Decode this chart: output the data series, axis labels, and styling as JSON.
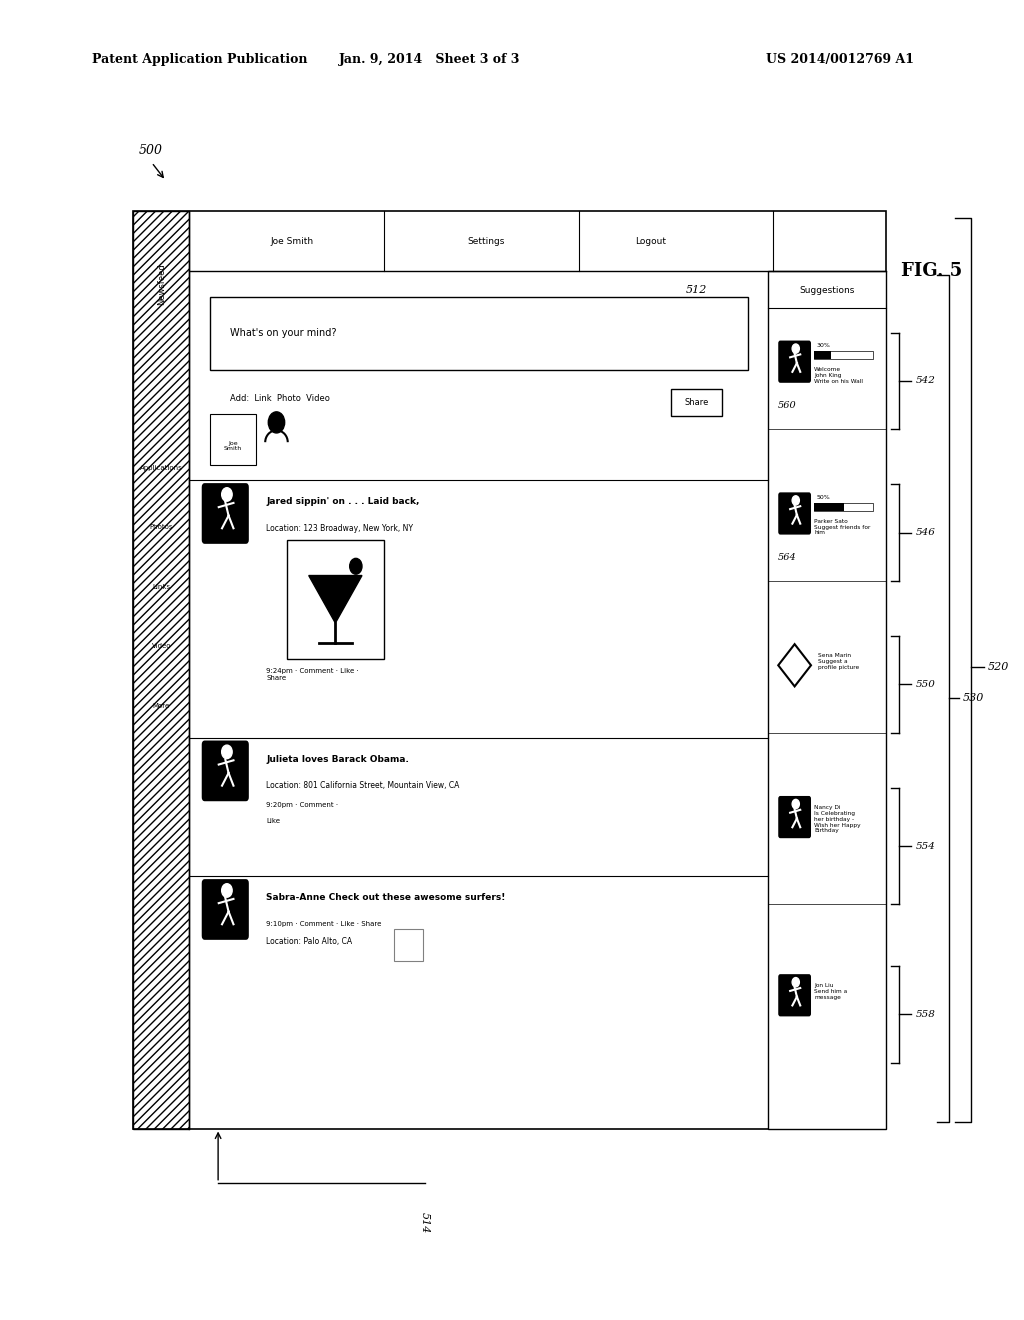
{
  "bg_color": "#ffffff",
  "header_left": "Patent Application Publication",
  "header_mid": "Jan. 9, 2014   Sheet 3 of 3",
  "header_right": "US 2014/0012769 A1",
  "fig_label": "FIG. 5",
  "ref_500": "500",
  "ref_520": "520",
  "ref_530": "530",
  "ref_512": "512",
  "ref_514": "514",
  "ref_542": "542",
  "ref_546": "546",
  "ref_550": "550",
  "ref_554": "554",
  "ref_558": "558",
  "ref_560": "560",
  "ref_564": "564"
}
